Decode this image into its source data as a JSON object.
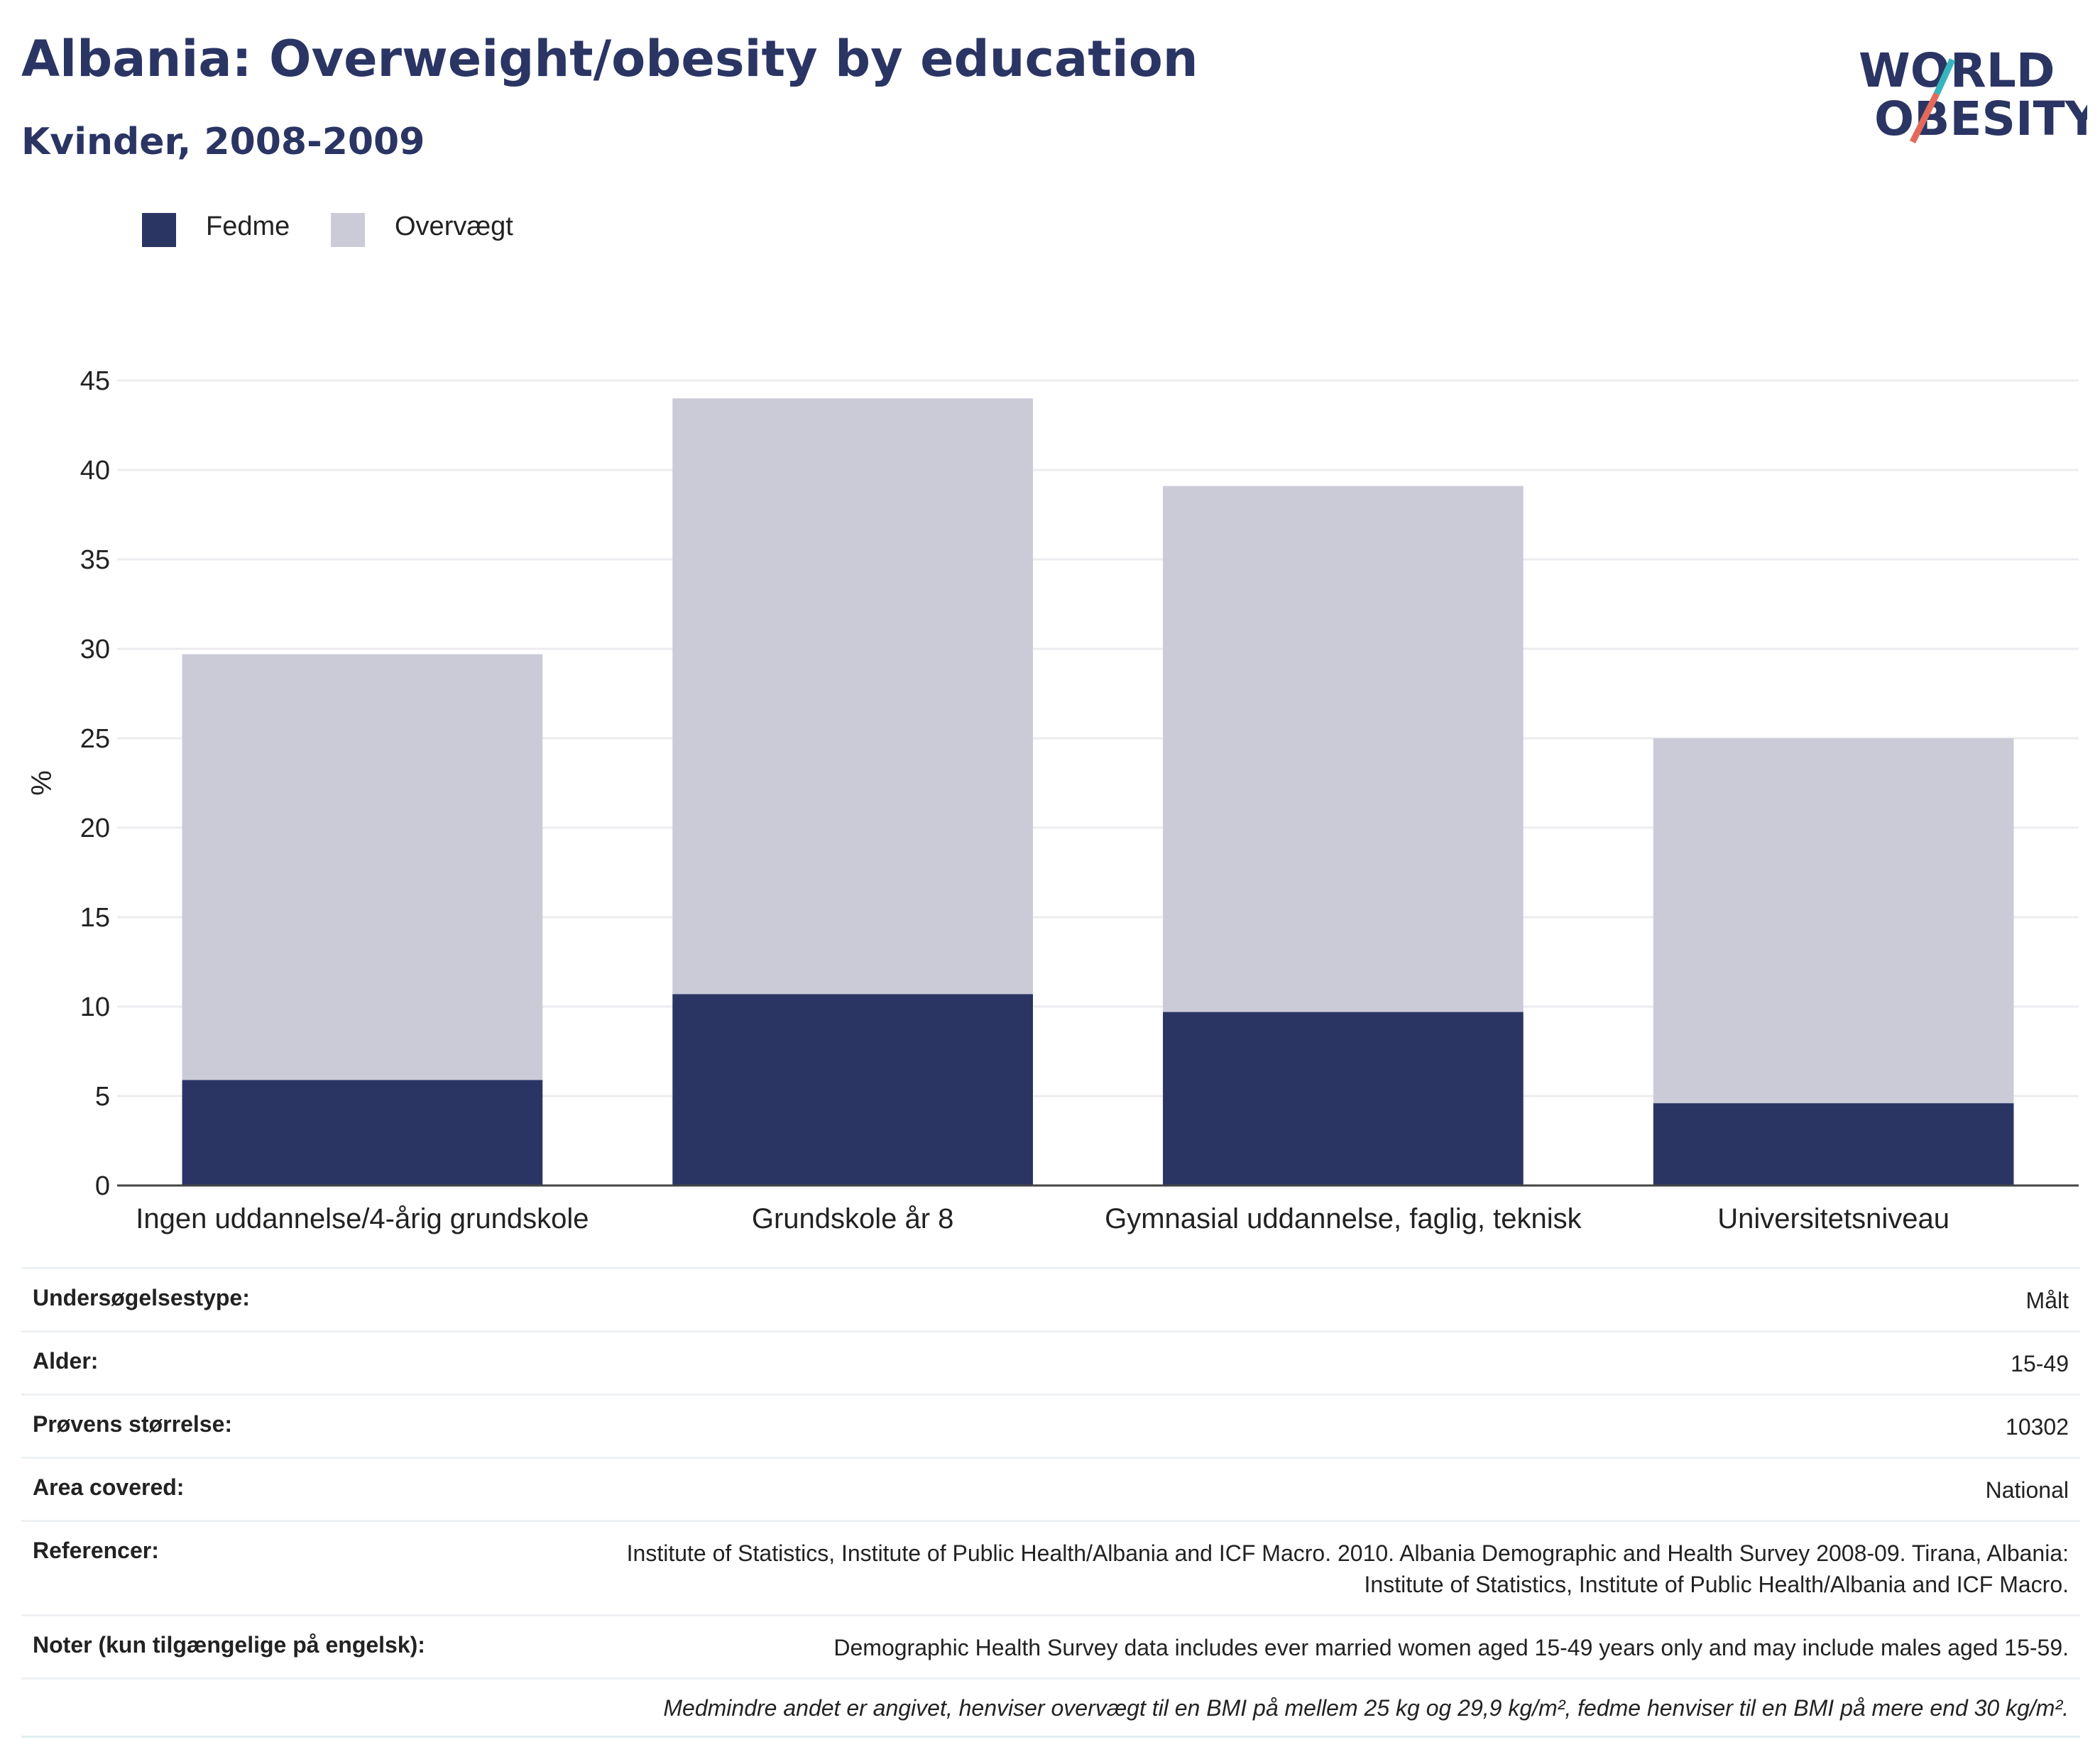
{
  "header": {
    "title": "Albania: Overweight/obesity by education",
    "subtitle": "Kvinder, 2008-2009"
  },
  "logo": {
    "line1": "WORLD",
    "line2": "OBESITY",
    "text_color": "#2a3564",
    "slash_colors": [
      "#e26a5a",
      "#36b5bd"
    ]
  },
  "legend": [
    {
      "label": "Fedme",
      "color": "#2a3564"
    },
    {
      "label": "Overvægt",
      "color": "#cacbd7"
    }
  ],
  "chart_data": {
    "type": "bar",
    "stacked": true,
    "categories": [
      "Ingen uddannelse/4-årig grundskole",
      "Grundskole år 8",
      "Gymnasial uddannelse, faglig, teknisk",
      "Universitetsniveau"
    ],
    "series": [
      {
        "name": "Fedme",
        "values": [
          5.9,
          10.7,
          9.7,
          4.6
        ],
        "color": "#2a3564"
      },
      {
        "name": "Overvægt",
        "values": [
          23.8,
          33.3,
          29.4,
          20.4
        ],
        "color": "#cacbd7"
      }
    ],
    "ylabel": "%",
    "ylim": [
      0,
      45
    ],
    "yticks": [
      "0",
      "5",
      "10",
      "15",
      "20",
      "25",
      "30",
      "35",
      "40",
      "45"
    ],
    "grid": true,
    "legend_position": "top-left"
  },
  "meta": [
    {
      "label": "Undersøgelsestype:",
      "value": "Målt"
    },
    {
      "label": "Alder:",
      "value": "15-49"
    },
    {
      "label": "Prøvens størrelse:",
      "value": "10302"
    },
    {
      "label": "Area covered:",
      "value": "National"
    },
    {
      "label": "Referencer:",
      "value": "Institute of Statistics, Institute of Public Health/Albania and ICF Macro. 2010. Albania Demographic and Health Survey 2008-09. Tirana, Albania: Institute of Statistics, Institute of Public Health/Albania and ICF Macro."
    },
    {
      "label": "Noter (kun tilgængelige på engelsk):",
      "value": "Demographic Health Survey data includes ever married women aged 15-49 years only and may include males aged 15-59."
    }
  ],
  "footnote": "Medmindre andet er angivet, henviser overvægt til en BMI på mellem 25 kg og 29,9 kg/m², fedme henviser til en BMI på mere end 30 kg/m²."
}
